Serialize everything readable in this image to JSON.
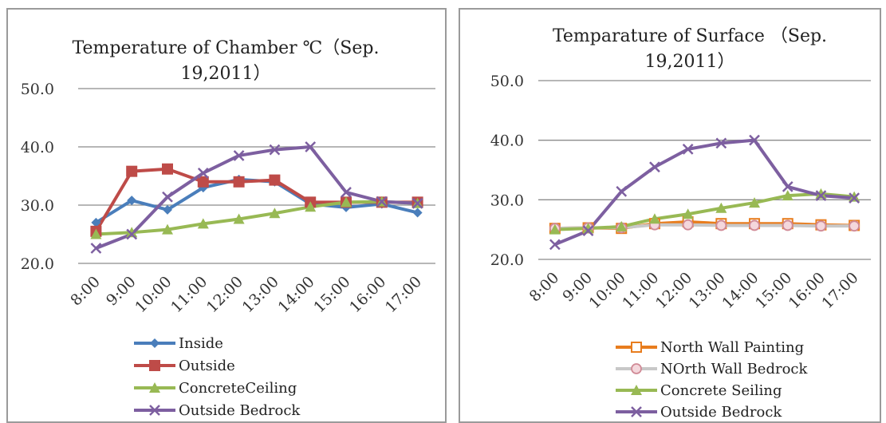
{
  "chart_data": [
    {
      "type": "line",
      "title": [
        "Temperature of Chamber ℃（Sep.",
        "19,2011）"
      ],
      "categories": [
        "8:00",
        "9:00",
        "10:00",
        "11:00",
        "12:00",
        "13:00",
        "14:00",
        "15:00",
        "16:00",
        "17:00"
      ],
      "ylim": [
        20,
        50
      ],
      "yticks": [
        "20.0",
        "30.0",
        "40.0",
        "50.0"
      ],
      "grid": true,
      "legend_position": "bottom",
      "series": [
        {
          "name": "Inside",
          "color": "#4a7ebb",
          "marker": "diamond",
          "values": [
            27.0,
            30.8,
            29.2,
            33.0,
            34.4,
            34.0,
            30.2,
            29.6,
            30.2,
            28.7
          ]
        },
        {
          "name": "Outside",
          "color": "#be4b48",
          "marker": "square",
          "values": [
            25.5,
            35.8,
            36.2,
            34.0,
            34.0,
            34.3,
            30.5,
            30.5,
            30.5,
            30.5
          ]
        },
        {
          "name": "ConcreteCeiling",
          "color": "#98b954",
          "marker": "triangle",
          "values": [
            25.0,
            25.3,
            25.8,
            26.8,
            27.6,
            28.6,
            29.7,
            30.5,
            30.6,
            30.3
          ]
        },
        {
          "name": "Outside Bedrock",
          "color": "#7d5fa0",
          "marker": "x",
          "values": [
            22.6,
            25.0,
            31.4,
            35.5,
            38.5,
            39.5,
            40.0,
            32.2,
            30.6,
            30.3
          ]
        }
      ]
    },
    {
      "type": "line",
      "title": [
        "Temparature of Surface （Sep.",
        "19,2011）"
      ],
      "categories": [
        "8:00",
        "9:00",
        "10:00",
        "11:00",
        "12:00",
        "13:00",
        "14:00",
        "15:00",
        "16:00",
        "17:00"
      ],
      "ylim": [
        20,
        50
      ],
      "yticks": [
        "20.0",
        "30.0",
        "40.0",
        "50.0"
      ],
      "grid": true,
      "legend_position": "bottom",
      "series": [
        {
          "name": "North Wall Painting",
          "color": "#e87d1e",
          "marker": "open-square",
          "values": [
            25.2,
            25.3,
            25.2,
            26.0,
            26.3,
            26.0,
            26.0,
            26.0,
            25.8,
            25.7
          ]
        },
        {
          "name": "NOrth Wall Bedrock",
          "color": "#c8c8c8",
          "marker": "open-circle",
          "values": [
            25.2,
            25.3,
            25.3,
            25.8,
            25.8,
            25.7,
            25.7,
            25.7,
            25.6,
            25.6
          ]
        },
        {
          "name": "Concrete Seiling",
          "color": "#98b954",
          "marker": "triangle",
          "values": [
            25.0,
            25.2,
            25.5,
            26.8,
            27.6,
            28.6,
            29.5,
            30.7,
            31.0,
            30.5
          ]
        },
        {
          "name": "Outside Bedrock",
          "color": "#7d5fa0",
          "marker": "x",
          "values": [
            22.5,
            24.8,
            31.4,
            35.5,
            38.5,
            39.5,
            40.0,
            32.2,
            30.7,
            30.3
          ]
        }
      ]
    }
  ]
}
